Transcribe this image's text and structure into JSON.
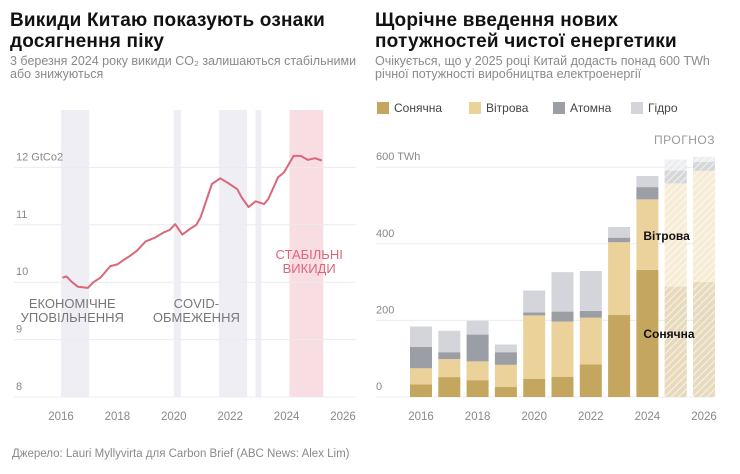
{
  "left": {
    "title": "Викиди Китаю показують ознаки досягнення піку",
    "subtitle": "3 березня 2024 року викиди CO₂ залишаються стабільними або знижуються"
  },
  "right": {
    "title": "Щорічне введення нових потужностей чистої енергетики",
    "subtitle": "Очікується, що у 2025 році Китай додасть понад 600 TWh річної потужності виробництва електроенергії"
  },
  "footer": "Джерело: Lauri Myllyvirta для Carbon Brief (ABC News: Alex Lim)",
  "colors": {
    "solar": "#c5a65f",
    "wind": "#ebd29b",
    "nuclear": "#9b9ea5",
    "hydro": "#d4d5da",
    "line": "#d8687a",
    "band": "#eeeef4",
    "stable": "#f8dde2"
  },
  "chart_data": [
    {
      "type": "line",
      "title": "Викиди Китаю показують ознаки досягнення піку",
      "ylabel": "GtCo2",
      "ylim": [
        8,
        12.5
      ],
      "xlim": [
        2015.3,
        2026.3
      ],
      "yticks": [
        {
          "v": 8,
          "label": "8"
        },
        {
          "v": 9,
          "label": "9"
        },
        {
          "v": 10,
          "label": "10"
        },
        {
          "v": 11,
          "label": "11"
        },
        {
          "v": 12,
          "label": "12 GtCo2"
        }
      ],
      "xticks": [
        2016,
        2018,
        2020,
        2022,
        2024,
        2026
      ],
      "series": [
        {
          "name": "CO2 emissions",
          "points": [
            [
              2016.05,
              10.08
            ],
            [
              2016.2,
              10.1
            ],
            [
              2016.35,
              10.02
            ],
            [
              2016.6,
              9.92
            ],
            [
              2016.95,
              9.9
            ],
            [
              2017.15,
              10.0
            ],
            [
              2017.4,
              10.08
            ],
            [
              2017.75,
              10.28
            ],
            [
              2018.0,
              10.31
            ],
            [
              2018.2,
              10.38
            ],
            [
              2018.45,
              10.46
            ],
            [
              2018.7,
              10.55
            ],
            [
              2019.0,
              10.71
            ],
            [
              2019.35,
              10.78
            ],
            [
              2019.65,
              10.87
            ],
            [
              2019.85,
              10.91
            ],
            [
              2020.05,
              11.01
            ],
            [
              2020.3,
              10.83
            ],
            [
              2020.55,
              10.92
            ],
            [
              2020.8,
              11.0
            ],
            [
              2020.95,
              11.13
            ],
            [
              2021.35,
              11.71
            ],
            [
              2021.65,
              11.81
            ],
            [
              2021.95,
              11.72
            ],
            [
              2022.25,
              11.62
            ],
            [
              2022.4,
              11.48
            ],
            [
              2022.65,
              11.31
            ],
            [
              2022.9,
              11.41
            ],
            [
              2023.2,
              11.36
            ],
            [
              2023.35,
              11.45
            ],
            [
              2023.7,
              11.83
            ],
            [
              2023.9,
              11.91
            ],
            [
              2024.25,
              12.2
            ],
            [
              2024.5,
              12.2
            ],
            [
              2024.75,
              12.13
            ],
            [
              2025.0,
              12.16
            ],
            [
              2025.25,
              12.12
            ]
          ]
        }
      ],
      "bands": [
        {
          "from": 2016.0,
          "to": 2017.0,
          "kind": "band"
        },
        {
          "from": 2020.0,
          "to": 2020.25,
          "kind": "band"
        },
        {
          "from": 2021.6,
          "to": 2022.6,
          "kind": "band"
        },
        {
          "from": 2022.9,
          "to": 2023.1,
          "kind": "band"
        },
        {
          "from": 2024.1,
          "to": 2025.3,
          "kind": "stable"
        }
      ],
      "annotations": [
        {
          "lines": [
            "ЕКОНОМІЧНЕ",
            "УПОВІЛЬНЕННЯ"
          ],
          "x": 2016.4,
          "y": 9.55,
          "color": "#777"
        },
        {
          "lines": [
            "COVID-",
            "ОБМЕЖЕННЯ"
          ],
          "x": 2020.8,
          "y": 9.55,
          "color": "#777"
        },
        {
          "lines": [
            "СТАБІЛЬНІ",
            "ВИКИДИ"
          ],
          "x": 2024.8,
          "y": 10.4,
          "color": "#d8687a"
        }
      ]
    },
    {
      "type": "bar",
      "stacked": true,
      "title": "Щорічне введення нових потужностей чистої енергетики",
      "ylabel": "TWh",
      "ylim": [
        0,
        650
      ],
      "yticks": [
        {
          "v": 0,
          "label": "0"
        },
        {
          "v": 200,
          "label": "200"
        },
        {
          "v": 400,
          "label": "400"
        },
        {
          "v": 600,
          "label": "600 TWh"
        }
      ],
      "categories": [
        2016,
        2017,
        2018,
        2019,
        2020,
        2021,
        2022,
        2023,
        2024,
        2025,
        2026
      ],
      "xticks": [
        2016,
        2018,
        2020,
        2022,
        2024,
        2026
      ],
      "forecast_from": 2025,
      "forecast_label": "ПРОГНОЗ",
      "series": [
        {
          "name": "Сонячна",
          "key": "solar",
          "values": [
            33,
            52,
            44,
            26,
            47,
            53,
            85,
            214,
            332,
            288,
            300
          ]
        },
        {
          "name": "Вітрова",
          "key": "wind",
          "values": [
            42,
            47,
            49,
            58,
            166,
            144,
            122,
            190,
            184,
            270,
            291
          ]
        },
        {
          "name": "Атомна",
          "key": "nuclear",
          "values": [
            56,
            18,
            70,
            33,
            8,
            26,
            18,
            12,
            32,
            33,
            23
          ]
        },
        {
          "name": "Гідро",
          "key": "hydro",
          "values": [
            53,
            56,
            36,
            20,
            57,
            103,
            104,
            28,
            29,
            29,
            13
          ]
        }
      ],
      "annotations": [
        {
          "text": "Вітрова",
          "x": 2024.0,
          "y": 420
        },
        {
          "text": "Сонячна",
          "x": 2024.0,
          "y": 165
        }
      ]
    }
  ]
}
